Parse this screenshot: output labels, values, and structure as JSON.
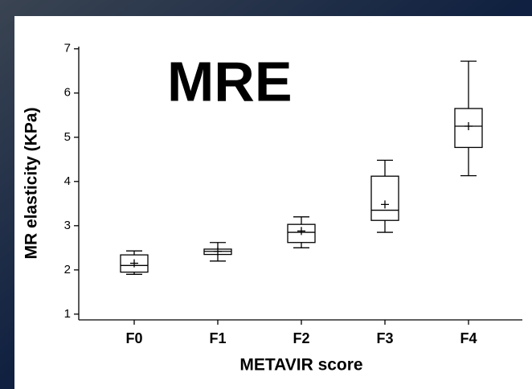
{
  "chart_data": {
    "type": "box",
    "annotation": "MRE",
    "x_label": "METAVIR score",
    "y_label": "MR elasticity (KPa)",
    "categories": [
      "F0",
      "F1",
      "F2",
      "F3",
      "F4"
    ],
    "boxes": [
      {
        "min": 1.9,
        "q1": 1.95,
        "median": 2.1,
        "q3": 2.34,
        "max": 2.43,
        "mean": 2.15
      },
      {
        "min": 2.2,
        "q1": 2.35,
        "median": 2.42,
        "q3": 2.47,
        "max": 2.62,
        "mean": 2.42
      },
      {
        "min": 2.5,
        "q1": 2.62,
        "median": 2.85,
        "q3": 3.03,
        "max": 3.2,
        "mean": 2.88
      },
      {
        "min": 2.85,
        "q1": 3.12,
        "median": 3.35,
        "q3": 4.12,
        "max": 4.48,
        "mean": 3.48
      },
      {
        "min": 4.13,
        "q1": 4.77,
        "median": 5.25,
        "q3": 5.65,
        "max": 6.72,
        "mean": 5.25
      }
    ],
    "color": "#000000",
    "ylim": [
      0.87,
      7.05
    ],
    "yticks": [
      1,
      2,
      3,
      4,
      5,
      6,
      7
    ]
  }
}
